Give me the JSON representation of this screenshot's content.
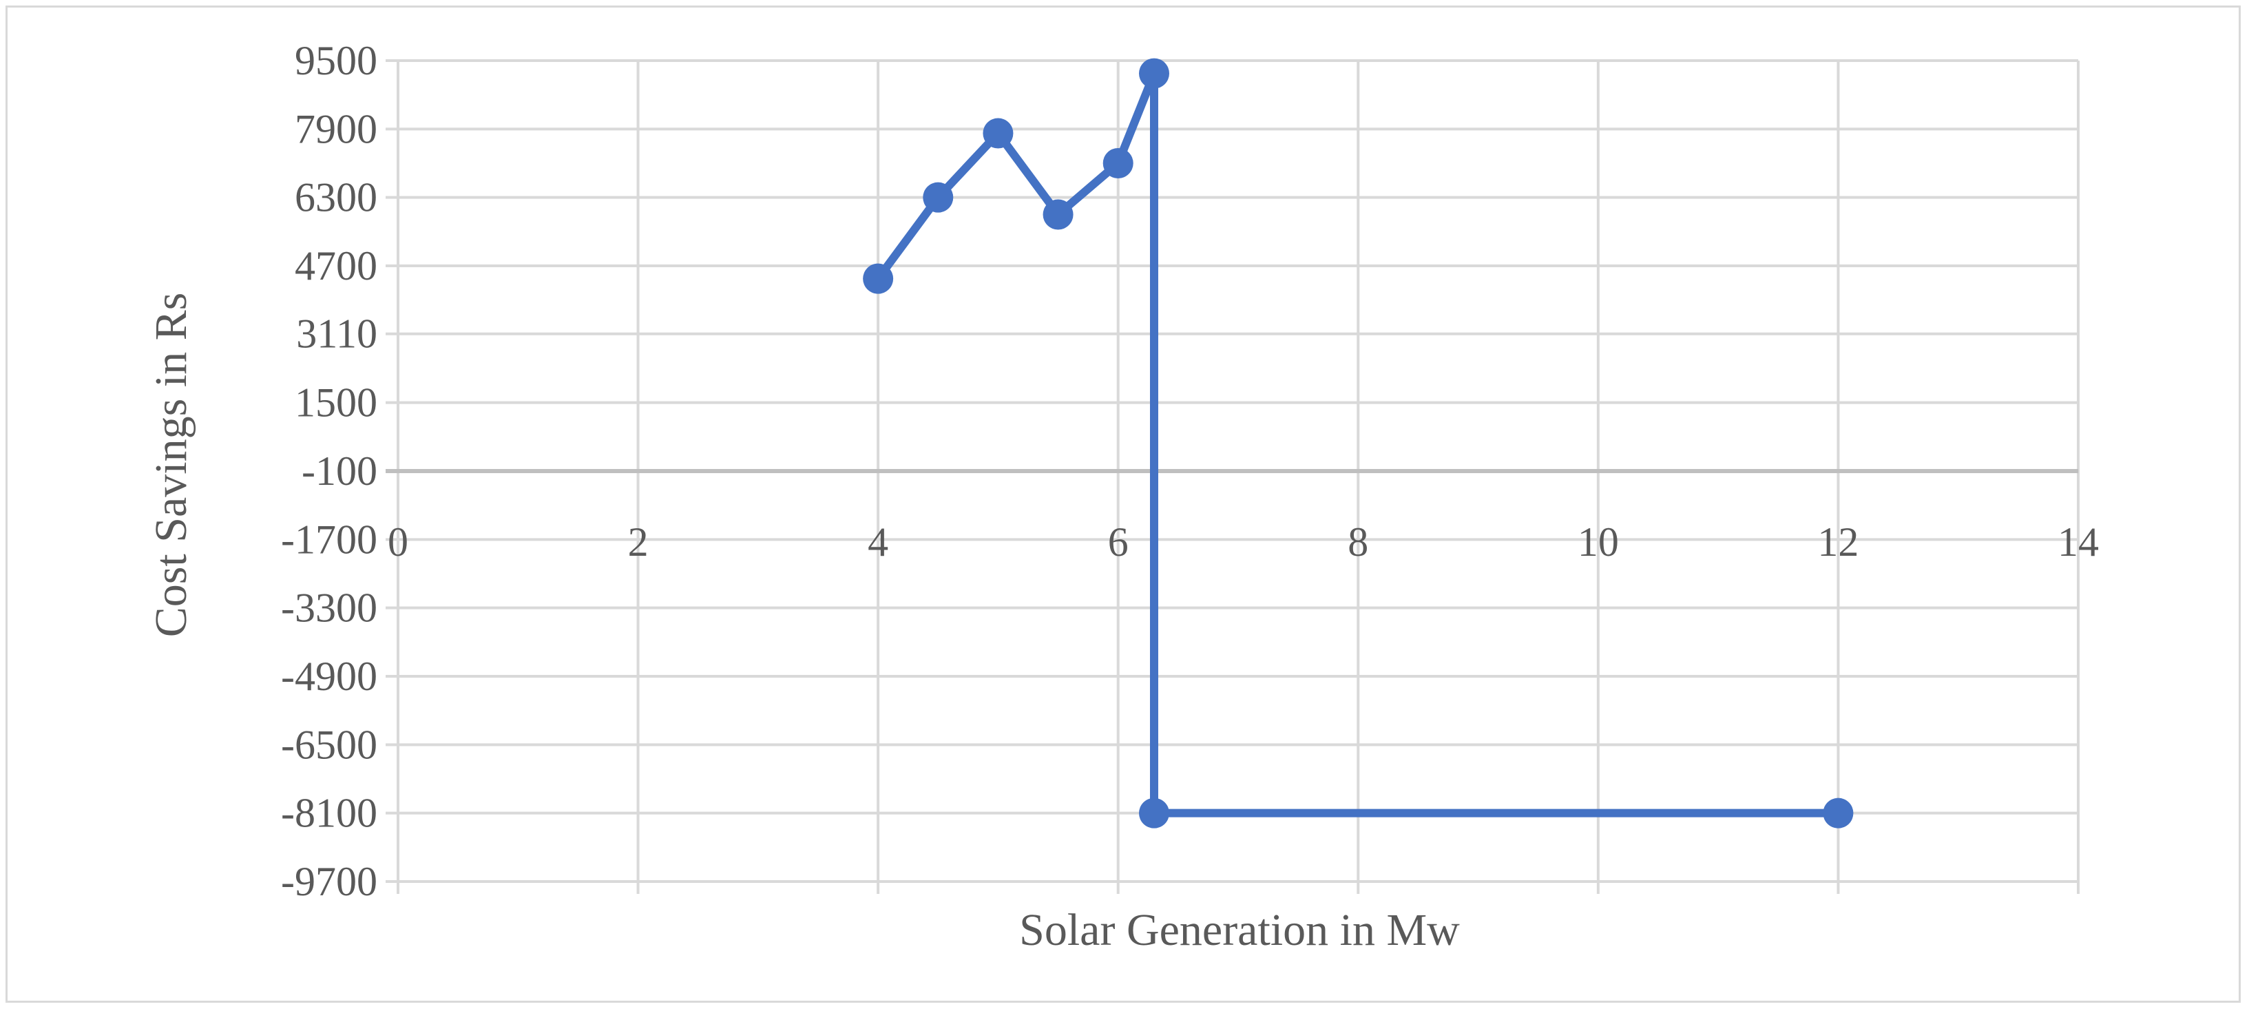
{
  "chart_data": {
    "type": "line",
    "title": "",
    "xlabel": "Solar Generation in Mw",
    "ylabel": "Cost Savings in Rs",
    "xlim": [
      0,
      14
    ],
    "ylim": [
      -9700,
      9500
    ],
    "x_ticks": [
      0,
      2,
      4,
      6,
      8,
      10,
      12,
      14
    ],
    "y_ticks": [
      9500,
      7900,
      6300,
      4700,
      3110,
      1500,
      -100,
      -1700,
      -3300,
      -4900,
      -6500,
      -8100,
      -9700
    ],
    "y_tick_labels": [
      "9500",
      "7900",
      "6300",
      "4700",
      "3110",
      "1500",
      "-100",
      "-1700",
      "-3300",
      "-4900",
      "-6500",
      "-8100",
      "-9700"
    ],
    "x_tick_labels": [
      "0",
      "2",
      "4",
      "6",
      "8",
      "10",
      "12",
      "14"
    ],
    "grid": true,
    "series": [
      {
        "name": "Cost Savings",
        "color": "#4472c4",
        "x": [
          4,
          4.5,
          5,
          5.5,
          6,
          6.3,
          6.3,
          12
        ],
        "y": [
          4400,
          6300,
          7800,
          5900,
          7100,
          9200,
          -8100,
          -8100
        ]
      }
    ]
  }
}
